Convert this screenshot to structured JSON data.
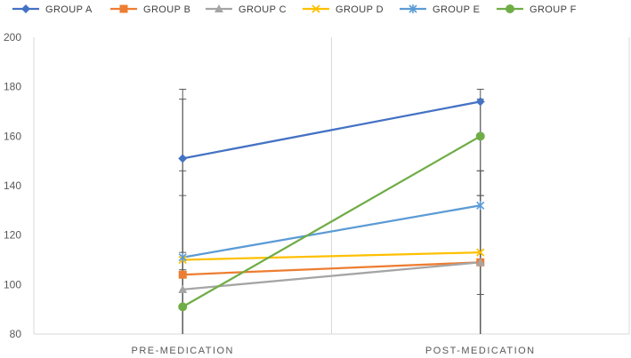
{
  "chart_data": {
    "type": "line",
    "categories": [
      "PRE-MEDICATION",
      "POST-MEDICATION"
    ],
    "ylim": [
      80,
      200
    ],
    "yticks": [
      80,
      100,
      120,
      140,
      160,
      180,
      200
    ],
    "grid": "vertical",
    "legend": "top",
    "series": [
      {
        "name": "GROUP A",
        "values": [
          151,
          174
        ],
        "error_high": [
          179,
          179
        ],
        "error_low": [
          80,
          80
        ],
        "color": "#4472C4",
        "marker": "diamond-icon"
      },
      {
        "name": "GROUP B",
        "values": [
          104,
          109
        ],
        "error_high": [
          175,
          175
        ],
        "error_low": [
          80,
          80
        ],
        "color": "#ED7D31",
        "marker": "square-icon"
      },
      {
        "name": "GROUP C",
        "values": [
          98,
          109
        ],
        "error_high": [
          146,
          146
        ],
        "error_low": [
          80,
          80
        ],
        "color": "#A5A5A5",
        "marker": "triangle-icon"
      },
      {
        "name": "GROUP D",
        "values": [
          110,
          113
        ],
        "error_high": [
          136,
          136
        ],
        "error_low": [
          80,
          80
        ],
        "color": "#FFC000",
        "marker": "x-icon"
      },
      {
        "name": "GROUP E",
        "values": [
          111,
          132
        ],
        "error_high": [
          113,
          146
        ],
        "error_low": [
          80,
          80
        ],
        "color": "#5B9BD5",
        "marker": "asterisk-icon"
      },
      {
        "name": "GROUP F",
        "values": [
          91,
          160
        ],
        "error_high": [
          106,
          136
        ],
        "error_low": [
          80,
          96
        ],
        "color": "#70AD47",
        "marker": "circle-icon"
      }
    ]
  }
}
